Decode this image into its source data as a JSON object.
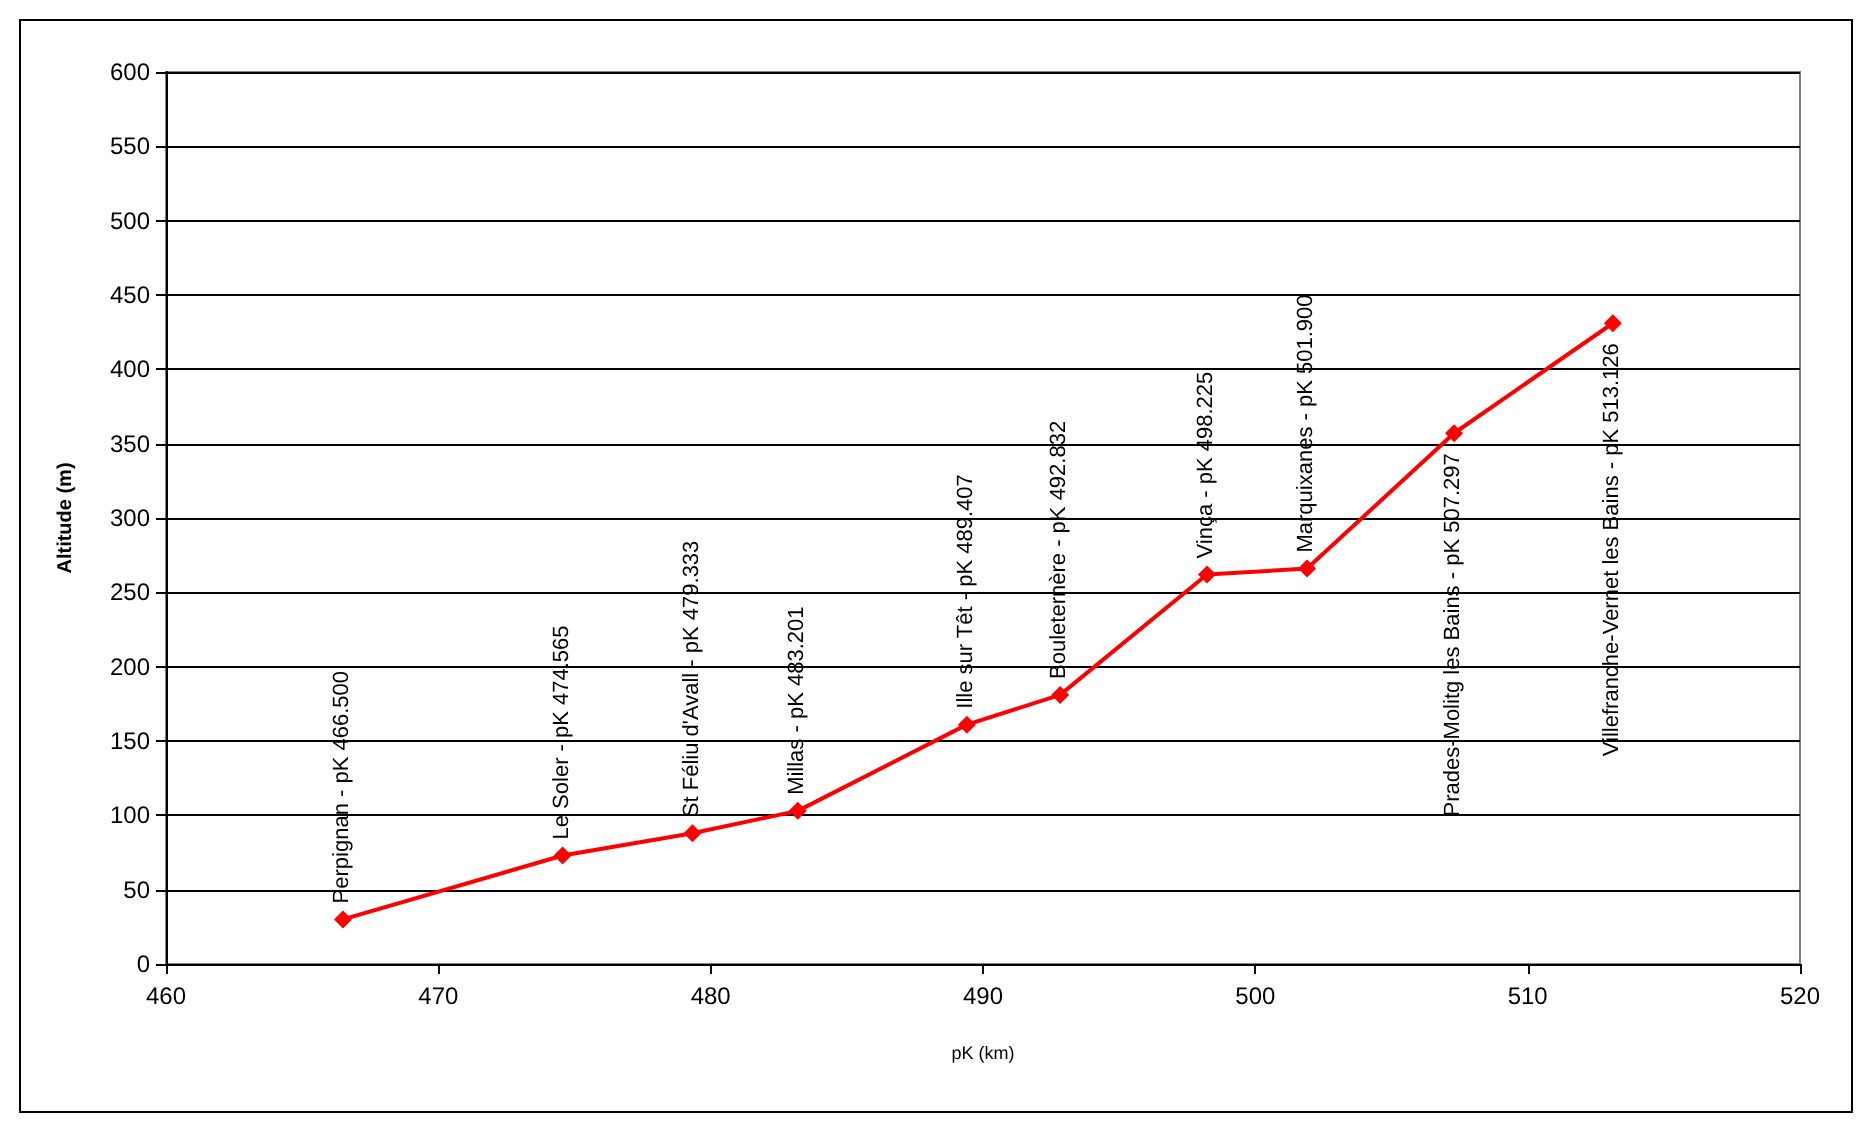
{
  "chart_data": {
    "type": "line",
    "xlabel": "pK (km)",
    "ylabel": "Altitude (m)",
    "x": [
      466.5,
      474.565,
      479.333,
      483.201,
      489.407,
      492.832,
      498.225,
      501.9,
      507.297,
      513.126
    ],
    "series": [
      {
        "color": "#ff0000",
        "values": [
          30,
          73,
          88,
          103,
          161,
          181,
          262,
          266,
          357,
          431
        ]
      }
    ],
    "xlim": [
      460,
      520
    ],
    "xticks": [
      460,
      470,
      480,
      490,
      500,
      510,
      520
    ],
    "ylim": [
      0,
      600
    ],
    "yticks": [
      0,
      50,
      100,
      150,
      200,
      250,
      300,
      350,
      400,
      450,
      500,
      550,
      600
    ],
    "grid": "y",
    "marker": "diamond",
    "line_style": "solid",
    "annotations": [
      {
        "text": "Perpignan - pK 466.500",
        "x": 466.5,
        "y": 30
      },
      {
        "text": "Le Soler - pK 474.565",
        "x": 474.565,
        "y": 73
      },
      {
        "text": "St Féliu d'Avall - pK 479.333",
        "x": 479.333,
        "y": 88
      },
      {
        "text": "Millas - pK 483.201",
        "x": 483.201,
        "y": 103
      },
      {
        "text": "Ille sur Têt - pK 489.407",
        "x": 489.407,
        "y": 161
      },
      {
        "text": "Bouleternère - pK 492.832",
        "x": 492.832,
        "y": 181
      },
      {
        "text": "Vinça - pK 498.225",
        "x": 498.225,
        "y": 262
      },
      {
        "text": "Marquixanes - pK 501.900",
        "x": 501.9,
        "y": 266
      },
      {
        "text": "Prades-Molitg les Bains - pK 507.297",
        "x": 507.297,
        "y": 357
      },
      {
        "text": "Villefranche-Vernet les Bains - pK 513.126",
        "x": 513.126,
        "y": 431
      }
    ]
  }
}
